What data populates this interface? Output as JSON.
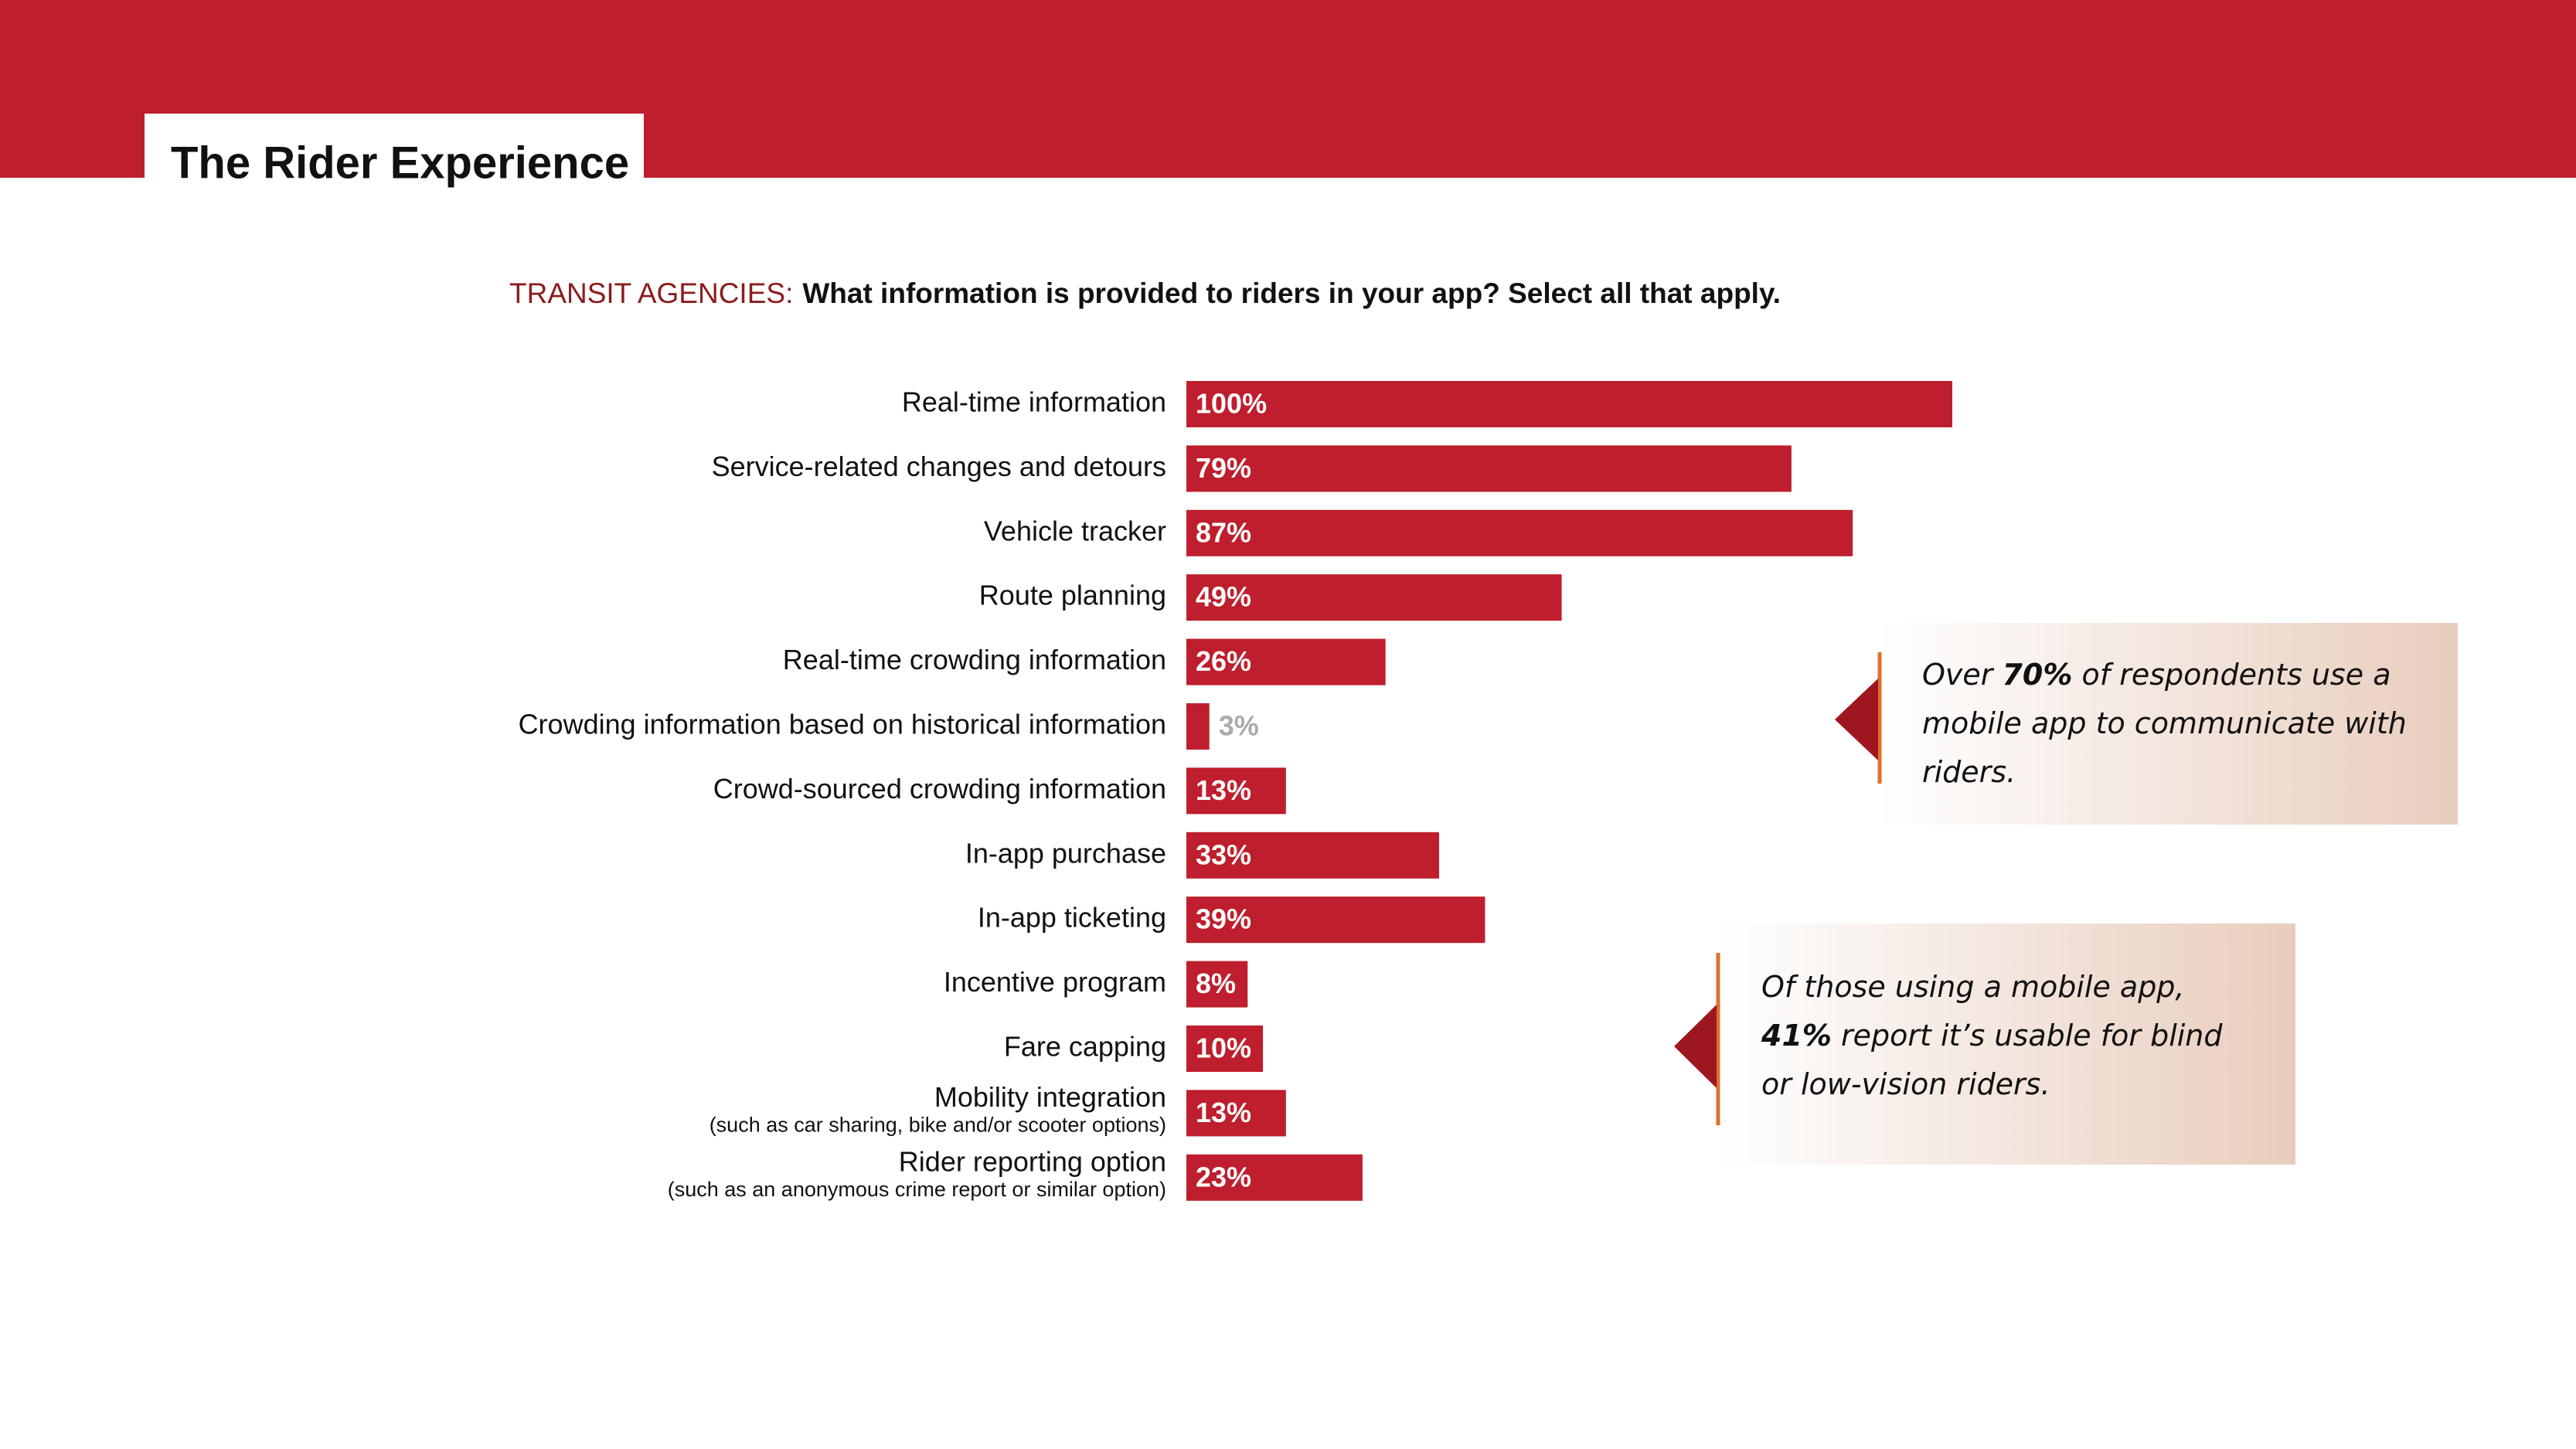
{
  "header": {
    "title": "The Rider Experience"
  },
  "chart_data": {
    "type": "bar",
    "orientation": "horizontal",
    "subtitle_prefix": "TRANSIT AGENCIES:",
    "title": "What information is provided to riders in your app? Select all that apply.",
    "categories": [
      "Real-time information",
      "Service-related changes and detours",
      "Vehicle tracker",
      "Route planning",
      "Real-time crowding information",
      "Crowding information based on historical information",
      "Crowd-sourced crowding information",
      "In-app purchase",
      "In-app ticketing",
      "Incentive program",
      "Fare capping",
      "Mobility integration",
      "Rider reporting option"
    ],
    "category_notes": [
      null,
      null,
      null,
      null,
      null,
      null,
      null,
      null,
      null,
      null,
      null,
      "(such as car sharing, bike and/or scooter options)",
      "(such as an anonymous crime report or similar option)"
    ],
    "values": [
      100,
      79,
      87,
      49,
      26,
      3,
      13,
      33,
      39,
      8,
      10,
      13,
      23
    ],
    "value_labels": [
      "100%",
      "79%",
      "87%",
      "49%",
      "26%",
      "3%",
      "13%",
      "33%",
      "39%",
      "8%",
      "10%",
      "13%",
      "23%"
    ],
    "color": "#be1e2d"
  },
  "callouts": [
    {
      "before": "Over ",
      "bold": "70%",
      "after": " of respondents use a mobile app to communicate with riders."
    },
    {
      "before": "Of those using a mobile app, ",
      "bold": "41%",
      "after": " report it’s usable for blind or low-vision riders."
    }
  ]
}
